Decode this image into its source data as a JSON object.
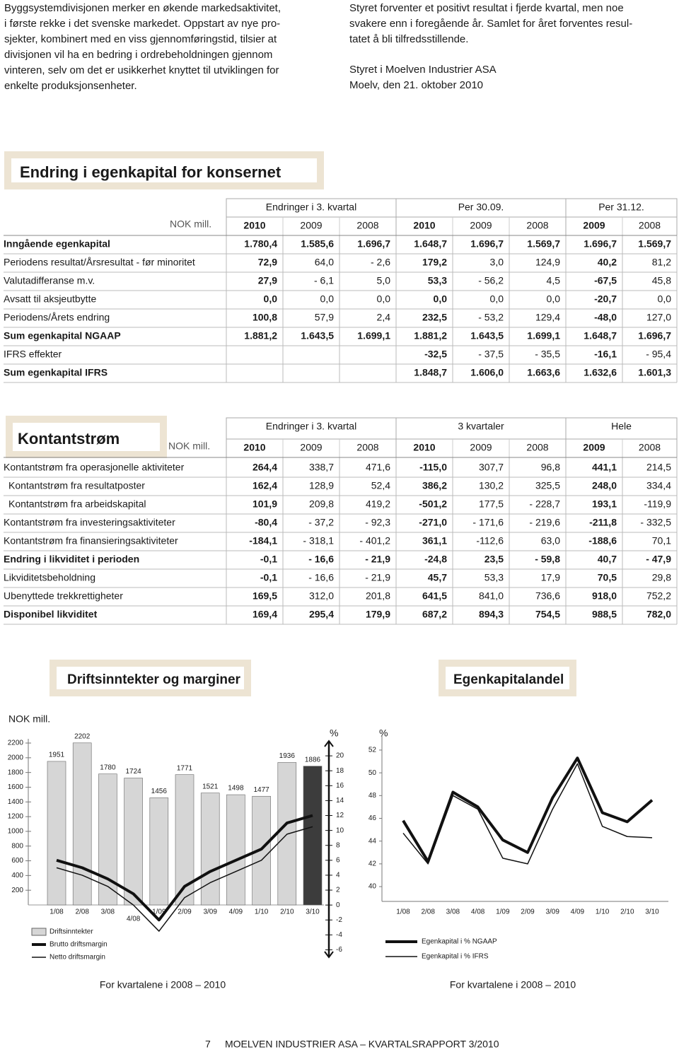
{
  "left_paragraph": [
    "Byggsystemdivisjonen merker en økende markedsaktivitet,",
    "i første rekke i det svenske markedet. Oppstart av nye pro-",
    "sjekter, kombinert med en viss gjennomføringstid, tilsier at",
    "divisjonen vil ha en bedring i ordrebeholdningen gjennom",
    "vinteren, selv om det er usikkerhet knyttet til utviklingen for",
    "enkelte produksjonsenheter."
  ],
  "right_paragraph": [
    "Styret forventer et positivt resultat i fjerde kvartal, men noe",
    "svakere enn i foregående år. Samlet for året forventes resul-",
    "tatet å bli tilfredsstillende."
  ],
  "signature": [
    "Styret i Moelven Industrier ASA",
    "Moelv, den 21. oktober 2010"
  ],
  "equity_table": {
    "title": "Endring i egenkapital for konsernet",
    "unit": "NOK mill.",
    "groups": [
      "Endringer i 3. kvartal",
      "Per 30.09.",
      "Per 31.12."
    ],
    "years": [
      "2010",
      "2009",
      "2008",
      "2010",
      "2009",
      "2008",
      "2009",
      "2008"
    ],
    "rows": [
      {
        "label": "Inngående egenkapital",
        "bold": true,
        "values": [
          "1.780,4",
          "1.585,6",
          "1.696,7",
          "1.648,7",
          "1.696,7",
          "1.569,7",
          "1.696,7",
          "1.569,7"
        ]
      },
      {
        "label": "Periodens resultat/Årsresultat - før minoritet",
        "bold": false,
        "values": [
          "72,9",
          "64,0",
          "- 2,6",
          "179,2",
          "3,0",
          "124,9",
          "40,2",
          "81,2"
        ]
      },
      {
        "label": "Valutadifferanse m.v.",
        "bold": false,
        "values": [
          "27,9",
          "- 6,1",
          "5,0",
          "53,3",
          "- 56,2",
          "4,5",
          "-67,5",
          "45,8"
        ]
      },
      {
        "label": "Avsatt til aksjeutbytte",
        "bold": false,
        "values": [
          "0,0",
          "0,0",
          "0,0",
          "0,0",
          "0,0",
          "0,0",
          "-20,7",
          "0,0"
        ]
      },
      {
        "label": "Periodens/Årets endring",
        "bold": false,
        "values": [
          "100,8",
          "57,9",
          "2,4",
          "232,5",
          "- 53,2",
          "129,4",
          "-48,0",
          "127,0"
        ]
      },
      {
        "label": "Sum egenkapital NGAAP",
        "bold": true,
        "values": [
          "1.881,2",
          "1.643,5",
          "1.699,1",
          "1.881,2",
          "1.643,5",
          "1.699,1",
          "1.648,7",
          "1.696,7"
        ]
      },
      {
        "label": "IFRS effekter",
        "bold": false,
        "values": [
          null,
          null,
          null,
          "-32,5",
          "- 37,5",
          "- 35,5",
          "-16,1",
          "- 95,4"
        ]
      },
      {
        "label": "Sum egenkapital IFRS",
        "bold": true,
        "values": [
          null,
          null,
          null,
          "1.848,7",
          "1.606,0",
          "1.663,6",
          "1.632,6",
          "1.601,3"
        ]
      }
    ]
  },
  "cashflow_table": {
    "title": "Kontantstrøm",
    "unit": "NOK mill.",
    "groups": [
      "Endringer i 3. kvartal",
      "3 kvartaler",
      "Hele"
    ],
    "years": [
      "2010",
      "2009",
      "2008",
      "2010",
      "2009",
      "2008",
      "2009",
      "2008"
    ],
    "rows": [
      {
        "label": "Kontantstrøm fra operasjonelle aktiviteter",
        "bold": false,
        "indent": false,
        "values": [
          "264,4",
          "338,7",
          "471,6",
          "-115,0",
          "307,7",
          "96,8",
          "441,1",
          "214,5"
        ]
      },
      {
        "label": "Kontantstrøm fra resultatposter",
        "bold": false,
        "indent": true,
        "values": [
          "162,4",
          "128,9",
          "52,4",
          "386,2",
          "130,2",
          "325,5",
          "248,0",
          "334,4"
        ]
      },
      {
        "label": "Kontantstrøm fra arbeidskapital",
        "bold": false,
        "indent": true,
        "values": [
          "101,9",
          "209,8",
          "419,2",
          "-501,2",
          "177,5",
          "- 228,7",
          "193,1",
          "-119,9"
        ]
      },
      {
        "label": "Kontantstrøm fra investeringsaktiviteter",
        "bold": false,
        "indent": false,
        "values": [
          "-80,4",
          "- 37,2",
          "- 92,3",
          "-271,0",
          "- 171,6",
          "- 219,6",
          "-211,8",
          "- 332,5"
        ]
      },
      {
        "label": "Kontantstrøm fra finansieringsaktiviteter",
        "bold": false,
        "indent": false,
        "values": [
          "-184,1",
          "- 318,1",
          "- 401,2",
          "361,1",
          "-112,6",
          "63,0",
          "-188,6",
          "70,1"
        ]
      },
      {
        "label": "Endring i likviditet i perioden",
        "bold": true,
        "indent": false,
        "values": [
          "-0,1",
          "- 16,6",
          "- 21,9",
          "-24,8",
          "23,5",
          "- 59,8",
          "40,7",
          "- 47,9"
        ]
      },
      {
        "label": "Likviditetsbeholdning",
        "bold": false,
        "indent": false,
        "values": [
          "-0,1",
          "- 16,6",
          "- 21,9",
          "45,7",
          "53,3",
          "17,9",
          "70,5",
          "29,8"
        ]
      },
      {
        "label": "Ubenyttede trekkrettigheter",
        "bold": false,
        "indent": false,
        "values": [
          "169,5",
          "312,0",
          "201,8",
          "641,5",
          "841,0",
          "736,6",
          "918,0",
          "752,2"
        ]
      },
      {
        "label": "Disponibel likviditet",
        "bold": true,
        "indent": false,
        "values": [
          "169,4",
          "295,4",
          "179,9",
          "687,2",
          "894,3",
          "754,5",
          "988,5",
          "782,0"
        ]
      }
    ]
  },
  "chart_data": [
    {
      "type": "bar",
      "title": "Driftsinntekter og marginer",
      "y_label": "NOK mill.",
      "y2_label": "%",
      "footnote": "For kvartalene i 2008 – 2010",
      "categories": [
        "1/08",
        "2/08",
        "3/08",
        "4/08",
        "1/09",
        "2/09",
        "3/09",
        "4/09",
        "1/10",
        "2/10",
        "3/10"
      ],
      "ylim": [
        0,
        2200
      ],
      "yticks": [
        200,
        400,
        600,
        800,
        1000,
        1200,
        1400,
        1600,
        1800,
        2000,
        2200
      ],
      "y2lim": [
        -7,
        22
      ],
      "y2ticks": [
        -6,
        -4,
        -2,
        0,
        2,
        4,
        6,
        8,
        10,
        12,
        14,
        16,
        18,
        20
      ],
      "series": [
        {
          "name": "Driftsinntekter",
          "type": "bar",
          "colors": [
            "#d6d6d6",
            "#d6d6d6",
            "#d6d6d6",
            "#d6d6d6",
            "#d6d6d6",
            "#d6d6d6",
            "#d6d6d6",
            "#d6d6d6",
            "#d6d6d6",
            "#d6d6d6",
            "#3c3c3c"
          ],
          "values": [
            1951,
            2202,
            1780,
            1724,
            1456,
            1771,
            1521,
            1498,
            1477,
            1936,
            1886
          ]
        },
        {
          "name": "Brutto driftsmargin",
          "type": "line",
          "axis": "y2",
          "color": "#111111",
          "width": 4,
          "values": [
            6.0,
            5.0,
            3.5,
            1.5,
            -2.0,
            2.5,
            4.5,
            6.0,
            7.5,
            11.0,
            12.0
          ]
        },
        {
          "name": "Netto driftsmargin",
          "type": "line",
          "axis": "y2",
          "color": "#111111",
          "width": 1.5,
          "values": [
            5.0,
            4.0,
            2.5,
            0.0,
            -3.5,
            1.0,
            3.0,
            4.5,
            6.0,
            9.5,
            10.5
          ]
        }
      ]
    },
    {
      "type": "line",
      "title": "Egenkapitalandel",
      "y_label": "%",
      "footnote": "For kvartalene i 2008 – 2010",
      "categories": [
        "1/08",
        "2/08",
        "3/08",
        "4/08",
        "1/09",
        "2/09",
        "3/09",
        "4/09",
        "1/10",
        "2/10",
        "3/10"
      ],
      "ylim": [
        38.7,
        53.3
      ],
      "yticks": [
        40,
        42,
        44,
        46,
        48,
        50,
        52
      ],
      "series": [
        {
          "name": "Egenkapital i % NGAAP",
          "color": "#111111",
          "width": 4,
          "values": [
            45.8,
            42.2,
            48.3,
            47.0,
            44.1,
            43.0,
            47.8,
            51.3,
            46.5,
            45.7,
            47.6
          ]
        },
        {
          "name": "Egenkapital i % IFRS",
          "color": "#111111",
          "width": 1.5,
          "values": [
            44.7,
            42.0,
            48.0,
            46.8,
            42.5,
            42.0,
            46.8,
            50.8,
            45.3,
            44.4,
            44.3
          ]
        }
      ]
    }
  ],
  "footer": {
    "page": "7",
    "text": "MOELVEN INDUSTRIER ASA – KVARTALSRAPPORT 3/2010"
  }
}
